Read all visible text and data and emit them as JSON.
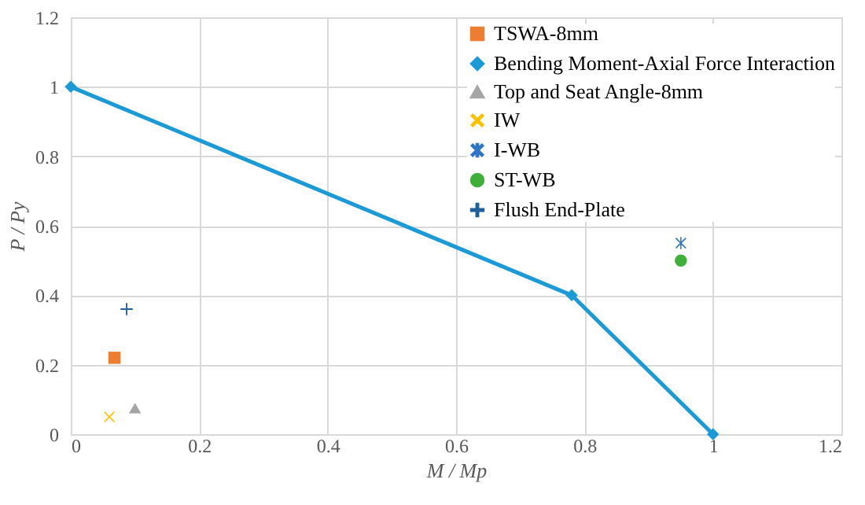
{
  "chart_data": {
    "type": "scatter",
    "xlabel": "M / Mp",
    "ylabel": "P / Py",
    "xlim": [
      0,
      1.2
    ],
    "xticks": [
      0,
      0.2,
      0.4,
      0.6,
      0.8,
      1,
      1.2
    ],
    "ylim": [
      0,
      1.2
    ],
    "yticks": [
      0,
      0.2,
      0.4,
      0.6,
      0.8,
      1,
      1.2
    ],
    "grid": true,
    "legend": "top right",
    "series": [
      {
        "name": "TSWA-8mm",
        "type": "scatter",
        "color": "#ed7d31",
        "marker": "square",
        "x": [
          0.068
        ],
        "values": [
          0.22
        ]
      },
      {
        "name": "Bending Moment-Axial Force Interaction",
        "type": "line",
        "color": "#1a9ad6",
        "marker": "diamond",
        "x": [
          0,
          0.78,
          1
        ],
        "values": [
          1,
          0.4,
          0
        ]
      },
      {
        "name": "Top and Seat Angle-8mm",
        "type": "scatter",
        "color": "#a5a5a5",
        "marker": "triangle",
        "x": [
          0.1
        ],
        "values": [
          0.075
        ]
      },
      {
        "name": "IW",
        "type": "scatter",
        "color": "#ffc000",
        "marker": "x",
        "x": [
          0.06
        ],
        "values": [
          0.05
        ]
      },
      {
        "name": "I-WB",
        "type": "scatter",
        "color": "#2e75c6",
        "marker": "star",
        "x": [
          0.95
        ],
        "values": [
          0.55
        ]
      },
      {
        "name": "ST-WB",
        "type": "scatter",
        "color": "#3fae3b",
        "marker": "circle",
        "x": [
          0.95
        ],
        "values": [
          0.5
        ]
      },
      {
        "name": "Flush End-Plate",
        "type": "scatter",
        "color": "#1f5f9a",
        "marker": "cross",
        "x": [
          0.087
        ],
        "values": [
          0.36
        ]
      }
    ]
  }
}
